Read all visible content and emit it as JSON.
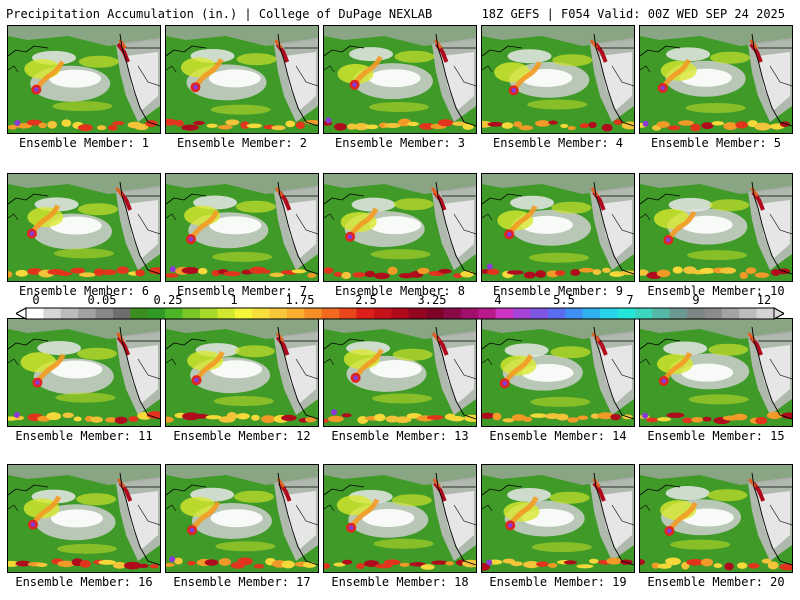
{
  "header": {
    "left": "Precipitation Accumulation (in.) | College of DuPage NEXLAB",
    "right": "18Z GEFS | F054 Valid: 00Z WED SEP 24 2025"
  },
  "panels": [
    {
      "label": "Ensemble Member: 1"
    },
    {
      "label": "Ensemble Member: 2"
    },
    {
      "label": "Ensemble Member: 3"
    },
    {
      "label": "Ensemble Member: 4"
    },
    {
      "label": "Ensemble Member: 5"
    },
    {
      "label": "Ensemble Member: 6"
    },
    {
      "label": "Ensemble Member: 7"
    },
    {
      "label": "Ensemble Member: 8"
    },
    {
      "label": "Ensemble Member: 9"
    },
    {
      "label": "Ensemble Member: 10"
    },
    {
      "label": "Ensemble Member: 11"
    },
    {
      "label": "Ensemble Member: 12"
    },
    {
      "label": "Ensemble Member: 13"
    },
    {
      "label": "Ensemble Member: 14"
    },
    {
      "label": "Ensemble Member: 15"
    },
    {
      "label": "Ensemble Member: 16"
    },
    {
      "label": "Ensemble Member: 17"
    },
    {
      "label": "Ensemble Member: 18"
    },
    {
      "label": "Ensemble Member: 19"
    },
    {
      "label": "Ensemble Member: 20"
    }
  ],
  "colorbar": {
    "tick_labels": [
      "0",
      "0.05",
      "0.25",
      "1",
      "1.75",
      "2.5",
      "3.25",
      "4",
      "5.5",
      "7",
      "9",
      "12"
    ],
    "colors": [
      "#ffffff",
      "#d6d6d6",
      "#bcbcbc",
      "#a2a2a2",
      "#888888",
      "#6e6e6e",
      "#3c8f1e",
      "#2f9a25",
      "#4db526",
      "#7ac828",
      "#a6d92a",
      "#d2e82e",
      "#f5f53a",
      "#f7e03c",
      "#f9c83a",
      "#f8ae2e",
      "#f58f25",
      "#f06b1f",
      "#e8451b",
      "#dc1f1a",
      "#c8121a",
      "#b00b1c",
      "#94061f",
      "#7d0427",
      "#8a0a48",
      "#a0106a",
      "#b81a8c",
      "#cc33c2",
      "#a644d8",
      "#7f56e2",
      "#5c6cf0",
      "#3f8ef4",
      "#2fb2f2",
      "#28d2ea",
      "#24e6d8",
      "#3cd6c0",
      "#56b8a6",
      "#6a9a92",
      "#7c8486",
      "#8c8c8c",
      "#a4a4a4",
      "#bcbcbc",
      "#d4d4d4"
    ]
  }
}
